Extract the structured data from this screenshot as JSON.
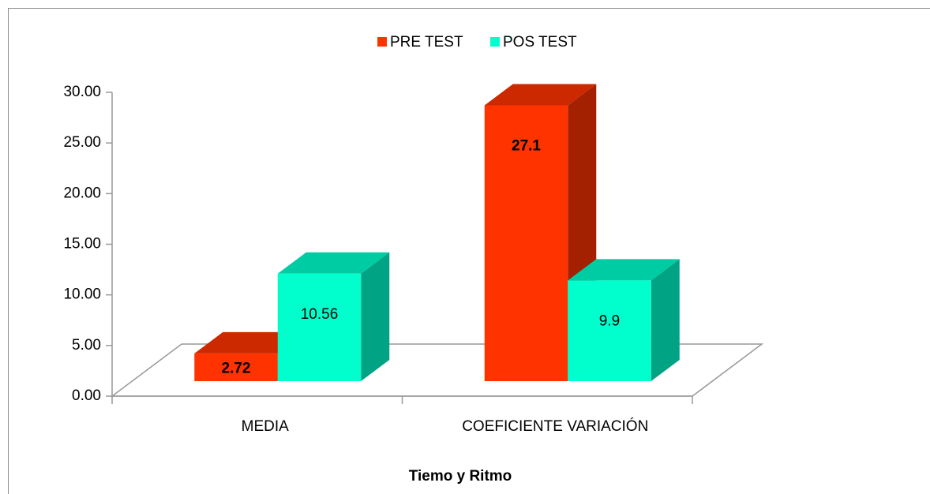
{
  "chart_data": {
    "type": "bar3d",
    "categories": [
      "MEDIA",
      "COEFICIENTE VARIACIÓN"
    ],
    "series": [
      {
        "name": "PRE TEST",
        "color": "#ff3300",
        "values": [
          2.72,
          27.1
        ]
      },
      {
        "name": "POS TEST",
        "color": "#00ffcc",
        "values": [
          10.56,
          9.9
        ]
      }
    ],
    "x_label": "Tiemo y Ritmo",
    "ylim": [
      0,
      30
    ],
    "yticks": [
      {
        "value": 0,
        "label": "0.00"
      },
      {
        "value": 5,
        "label": "5.00"
      },
      {
        "value": 10,
        "label": "10.00"
      },
      {
        "value": 15,
        "label": "15.00"
      },
      {
        "value": 20,
        "label": "20.00"
      },
      {
        "value": 25,
        "label": "25.00"
      },
      {
        "value": 30,
        "label": "30.00"
      }
    ],
    "legend": "top"
  }
}
